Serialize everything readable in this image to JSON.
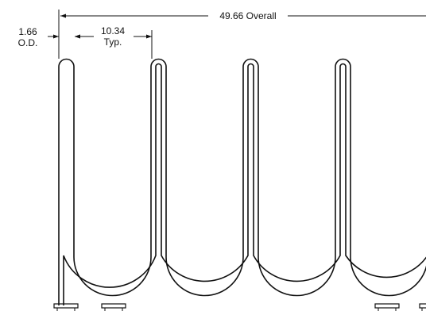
{
  "overall_label": "49.66 Overall",
  "od_label_value": "1.66",
  "od_label_unit": "O.D.",
  "spacing_label_value": "10.34",
  "spacing_label_unit": "Typ.",
  "colors": {
    "line": "#111111",
    "background": "#ffffff"
  }
}
